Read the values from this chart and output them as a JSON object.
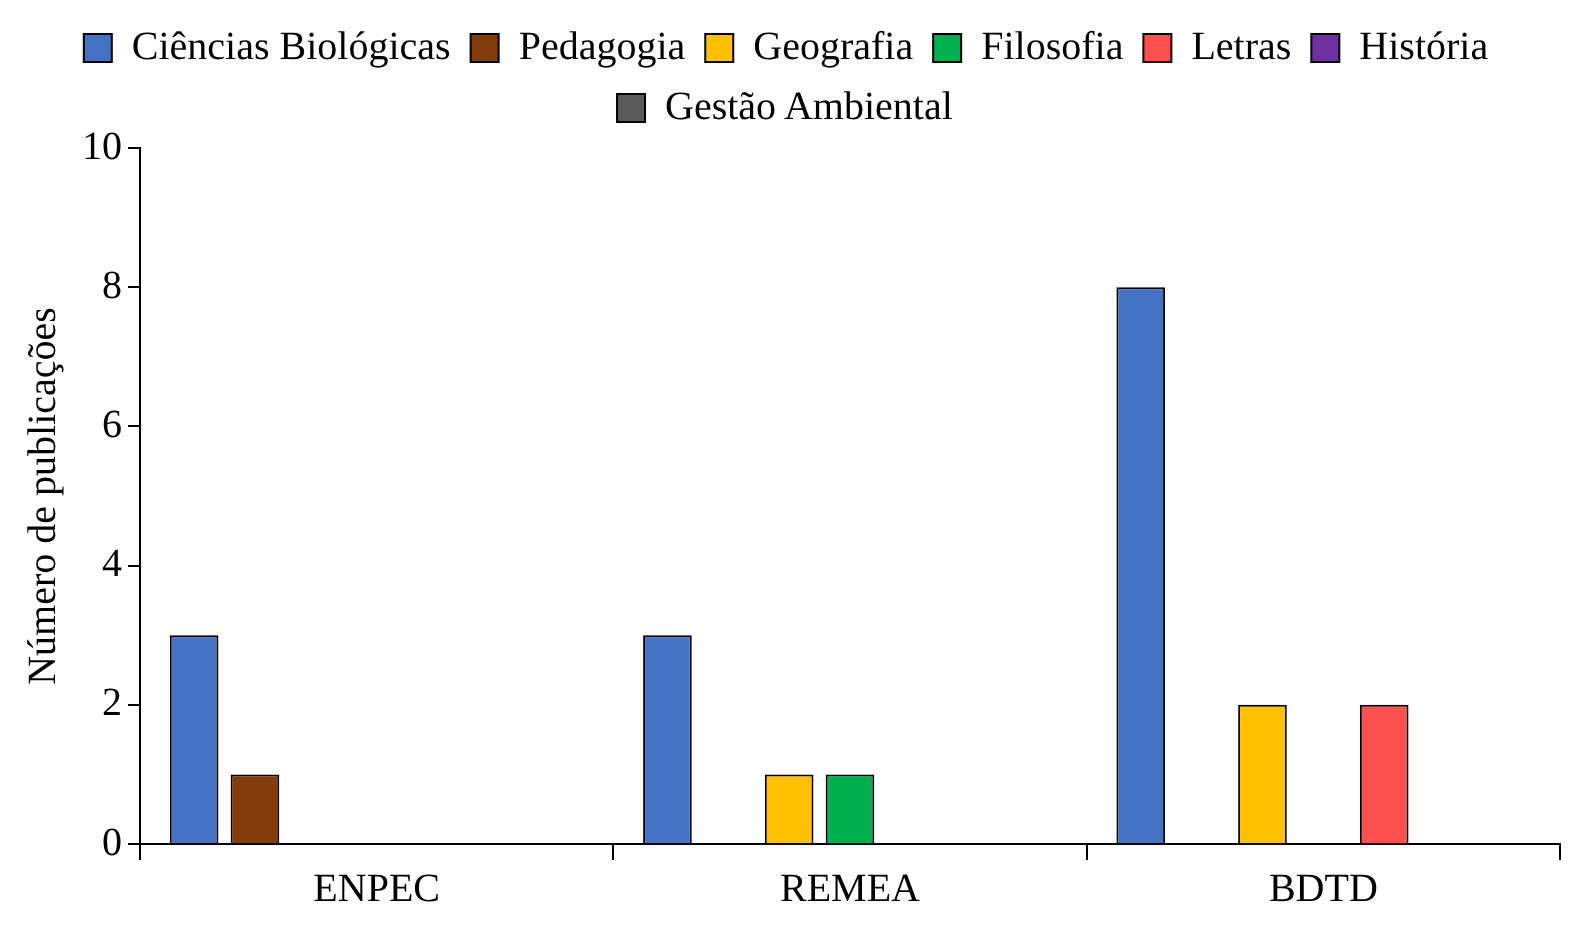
{
  "chart_data": {
    "type": "bar",
    "ylabel": "Número de publicações",
    "categories": [
      "ENPEC",
      "REMEA",
      "BDTD"
    ],
    "series": [
      {
        "name": "Ciências Biológicas",
        "color": "#4472c4",
        "values": [
          3,
          3,
          8
        ]
      },
      {
        "name": "Pedagogia",
        "color": "#843c0c",
        "values": [
          1,
          0,
          0
        ]
      },
      {
        "name": "Geografia",
        "color": "#ffc000",
        "values": [
          0,
          1,
          2
        ]
      },
      {
        "name": "Filosofia",
        "color": "#00b050",
        "values": [
          0,
          1,
          0
        ]
      },
      {
        "name": "Letras",
        "color": "#ff5050",
        "values": [
          0,
          0,
          2
        ]
      },
      {
        "name": "História",
        "color": "#7030a0",
        "values": [
          0,
          0,
          null
        ]
      },
      {
        "name": "Gestão Ambiental",
        "color": "#595959",
        "values": [
          0,
          0,
          null
        ]
      }
    ],
    "ylim": [
      0,
      10
    ],
    "yticks": [
      0,
      2,
      4,
      6,
      8,
      10
    ],
    "grid": false,
    "legend": "top"
  }
}
